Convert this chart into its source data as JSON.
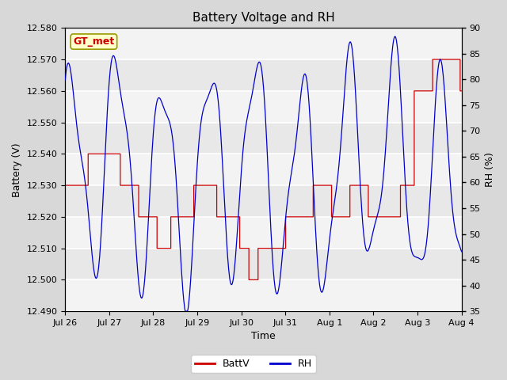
{
  "title": "Battery Voltage and RH",
  "xlabel": "Time",
  "ylabel_left": "Battery (V)",
  "ylabel_right": "RH (%)",
  "annotation": "GT_met",
  "ylim_left": [
    12.49,
    12.58
  ],
  "ylim_right": [
    35,
    90
  ],
  "yticks_left": [
    12.49,
    12.5,
    12.51,
    12.52,
    12.53,
    12.54,
    12.55,
    12.56,
    12.57,
    12.58
  ],
  "yticks_right": [
    35,
    40,
    45,
    50,
    55,
    60,
    65,
    70,
    75,
    80,
    85,
    90
  ],
  "xtick_labels": [
    "Jul 26",
    "Jul 27",
    "Jul 28",
    "Jul 29",
    "Jul 30",
    "Jul 31",
    "Aug 1",
    "Aug 2",
    "Aug 3",
    "Aug 4"
  ],
  "n_days": 9.0,
  "bg_color": "#d8d8d8",
  "plot_bg_color": "#e8e8e8",
  "line_color_batt": "#cc0000",
  "line_color_rh": "#0000cc",
  "legend_batt": "BattV",
  "legend_rh": "RH",
  "grid_color": "#ffffff",
  "annotation_bg": "#ffffcc",
  "annotation_border": "#999900",
  "annotation_text_color": "#cc0000",
  "title_fontsize": 11,
  "axis_fontsize": 9,
  "tick_fontsize": 8
}
